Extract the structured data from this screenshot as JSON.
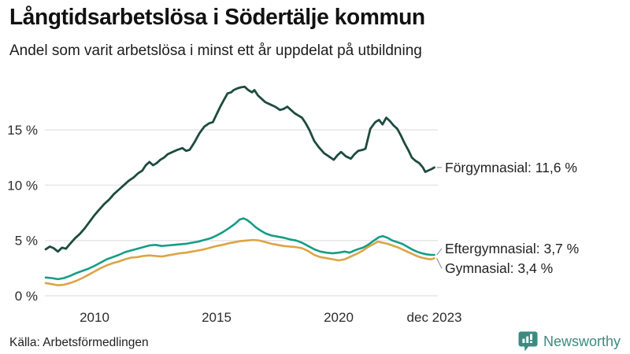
{
  "header": {
    "title": "Långtidsarbetslösa i Södertälje kommun",
    "subtitle": "Andel som varit arbetslösa i minst ett år uppdelat på utbildning"
  },
  "footer": {
    "source": "Källa: Arbetsförmedlingen",
    "brand": "Newsworthy"
  },
  "colors": {
    "forgymnasial": "#1d4b3f",
    "eftergymnasial": "#169c86",
    "gymnasial": "#dca444",
    "gridline": "#e7e7ea",
    "connector": "#999999",
    "brand_teal": "#3d8b80"
  },
  "chart_data": {
    "type": "line",
    "title": "Långtidsarbetslösa i Södertälje kommun",
    "subtitle": "Andel som varit arbetslösa i minst ett år uppdelat på utbildning",
    "grid": "horizontal",
    "legend_position": "end-of-line",
    "x_axis": {
      "range": [
        2008.0,
        2023.92
      ],
      "ticks": [
        {
          "label": "2010",
          "year": 2010
        },
        {
          "label": "2015",
          "year": 2015
        },
        {
          "label": "2020",
          "year": 2020
        },
        {
          "label": "dec 2023",
          "year": 2023.92
        }
      ]
    },
    "y_axis": {
      "range": [
        0,
        20
      ],
      "unit": "%",
      "ticks": [
        {
          "label": "0 %",
          "value": 0
        },
        {
          "label": "5 %",
          "value": 5
        },
        {
          "label": "10 %",
          "value": 10
        },
        {
          "label": "15 %",
          "value": 15
        }
      ]
    },
    "series": [
      {
        "name": "Förgymnasial",
        "color": "#1d4b3f",
        "last_value": 11.6,
        "end_label": "Förgymnasial: 11,6 %",
        "points": [
          [
            2008.0,
            4.2
          ],
          [
            2008.17,
            4.45
          ],
          [
            2008.33,
            4.3
          ],
          [
            2008.5,
            4.0
          ],
          [
            2008.67,
            4.35
          ],
          [
            2008.83,
            4.25
          ],
          [
            2009.0,
            4.7
          ],
          [
            2009.2,
            5.2
          ],
          [
            2009.4,
            5.6
          ],
          [
            2009.6,
            6.1
          ],
          [
            2009.8,
            6.7
          ],
          [
            2010.0,
            7.3
          ],
          [
            2010.2,
            7.8
          ],
          [
            2010.4,
            8.3
          ],
          [
            2010.6,
            8.7
          ],
          [
            2010.8,
            9.2
          ],
          [
            2011.0,
            9.6
          ],
          [
            2011.2,
            10.0
          ],
          [
            2011.4,
            10.4
          ],
          [
            2011.6,
            10.7
          ],
          [
            2011.8,
            11.1
          ],
          [
            2011.95,
            11.3
          ],
          [
            2012.1,
            11.8
          ],
          [
            2012.25,
            12.1
          ],
          [
            2012.4,
            11.8
          ],
          [
            2012.55,
            12.0
          ],
          [
            2012.7,
            12.3
          ],
          [
            2012.85,
            12.5
          ],
          [
            2013.0,
            12.8
          ],
          [
            2013.2,
            13.0
          ],
          [
            2013.4,
            13.2
          ],
          [
            2013.6,
            13.35
          ],
          [
            2013.75,
            13.1
          ],
          [
            2013.9,
            13.2
          ],
          [
            2014.1,
            13.9
          ],
          [
            2014.3,
            14.7
          ],
          [
            2014.5,
            15.3
          ],
          [
            2014.7,
            15.6
          ],
          [
            2014.85,
            15.7
          ],
          [
            2015.0,
            16.4
          ],
          [
            2015.15,
            17.1
          ],
          [
            2015.3,
            17.7
          ],
          [
            2015.45,
            18.3
          ],
          [
            2015.6,
            18.4
          ],
          [
            2015.7,
            18.6
          ],
          [
            2015.85,
            18.75
          ],
          [
            2016.0,
            18.85
          ],
          [
            2016.15,
            18.9
          ],
          [
            2016.3,
            18.6
          ],
          [
            2016.45,
            18.4
          ],
          [
            2016.55,
            18.6
          ],
          [
            2016.7,
            18.1
          ],
          [
            2016.85,
            17.8
          ],
          [
            2017.0,
            17.5
          ],
          [
            2017.2,
            17.3
          ],
          [
            2017.4,
            17.1
          ],
          [
            2017.6,
            16.8
          ],
          [
            2017.75,
            16.9
          ],
          [
            2017.9,
            17.1
          ],
          [
            2018.05,
            16.8
          ],
          [
            2018.2,
            16.5
          ],
          [
            2018.35,
            16.3
          ],
          [
            2018.5,
            16.1
          ],
          [
            2018.65,
            15.6
          ],
          [
            2018.8,
            15.0
          ],
          [
            2019.0,
            14.0
          ],
          [
            2019.2,
            13.4
          ],
          [
            2019.4,
            12.9
          ],
          [
            2019.6,
            12.6
          ],
          [
            2019.8,
            12.3
          ],
          [
            2019.95,
            12.7
          ],
          [
            2020.1,
            13.0
          ],
          [
            2020.3,
            12.6
          ],
          [
            2020.5,
            12.4
          ],
          [
            2020.65,
            12.8
          ],
          [
            2020.8,
            13.1
          ],
          [
            2021.0,
            13.2
          ],
          [
            2021.1,
            13.3
          ],
          [
            2021.3,
            15.1
          ],
          [
            2021.5,
            15.7
          ],
          [
            2021.65,
            15.9
          ],
          [
            2021.8,
            15.5
          ],
          [
            2021.95,
            16.1
          ],
          [
            2022.1,
            15.8
          ],
          [
            2022.25,
            15.4
          ],
          [
            2022.4,
            15.1
          ],
          [
            2022.55,
            14.5
          ],
          [
            2022.7,
            13.8
          ],
          [
            2022.85,
            13.2
          ],
          [
            2023.0,
            12.5
          ],
          [
            2023.15,
            12.2
          ],
          [
            2023.3,
            12.0
          ],
          [
            2023.45,
            11.6
          ],
          [
            2023.55,
            11.2
          ],
          [
            2023.7,
            11.35
          ],
          [
            2023.8,
            11.45
          ],
          [
            2023.92,
            11.6
          ]
        ]
      },
      {
        "name": "Eftergymnasial",
        "color": "#169c86",
        "last_value": 3.7,
        "end_label": "Eftergymnasial:  3,7 %",
        "points": [
          [
            2008.0,
            1.65
          ],
          [
            2008.25,
            1.6
          ],
          [
            2008.5,
            1.5
          ],
          [
            2008.75,
            1.6
          ],
          [
            2009.0,
            1.8
          ],
          [
            2009.25,
            2.05
          ],
          [
            2009.5,
            2.25
          ],
          [
            2009.75,
            2.45
          ],
          [
            2010.0,
            2.7
          ],
          [
            2010.25,
            3.0
          ],
          [
            2010.5,
            3.3
          ],
          [
            2010.75,
            3.5
          ],
          [
            2011.0,
            3.7
          ],
          [
            2011.25,
            3.95
          ],
          [
            2011.5,
            4.1
          ],
          [
            2011.75,
            4.25
          ],
          [
            2012.0,
            4.4
          ],
          [
            2012.25,
            4.55
          ],
          [
            2012.5,
            4.6
          ],
          [
            2012.75,
            4.5
          ],
          [
            2013.0,
            4.55
          ],
          [
            2013.25,
            4.6
          ],
          [
            2013.5,
            4.65
          ],
          [
            2013.75,
            4.7
          ],
          [
            2014.0,
            4.8
          ],
          [
            2014.25,
            4.9
          ],
          [
            2014.5,
            5.05
          ],
          [
            2014.75,
            5.2
          ],
          [
            2015.0,
            5.45
          ],
          [
            2015.25,
            5.75
          ],
          [
            2015.5,
            6.1
          ],
          [
            2015.75,
            6.5
          ],
          [
            2015.95,
            6.9
          ],
          [
            2016.1,
            7.0
          ],
          [
            2016.25,
            6.85
          ],
          [
            2016.4,
            6.6
          ],
          [
            2016.6,
            6.2
          ],
          [
            2016.8,
            5.9
          ],
          [
            2017.0,
            5.65
          ],
          [
            2017.25,
            5.45
          ],
          [
            2017.5,
            5.35
          ],
          [
            2017.75,
            5.25
          ],
          [
            2018.0,
            5.1
          ],
          [
            2018.25,
            5.0
          ],
          [
            2018.5,
            4.8
          ],
          [
            2018.75,
            4.5
          ],
          [
            2019.0,
            4.2
          ],
          [
            2019.25,
            4.0
          ],
          [
            2019.5,
            3.9
          ],
          [
            2019.75,
            3.85
          ],
          [
            2020.0,
            3.9
          ],
          [
            2020.25,
            4.0
          ],
          [
            2020.45,
            3.9
          ],
          [
            2020.65,
            4.1
          ],
          [
            2020.85,
            4.25
          ],
          [
            2021.0,
            4.35
          ],
          [
            2021.2,
            4.6
          ],
          [
            2021.45,
            5.0
          ],
          [
            2021.65,
            5.3
          ],
          [
            2021.8,
            5.4
          ],
          [
            2022.0,
            5.25
          ],
          [
            2022.2,
            5.0
          ],
          [
            2022.4,
            4.85
          ],
          [
            2022.6,
            4.7
          ],
          [
            2022.8,
            4.45
          ],
          [
            2023.0,
            4.2
          ],
          [
            2023.2,
            4.0
          ],
          [
            2023.4,
            3.85
          ],
          [
            2023.6,
            3.75
          ],
          [
            2023.8,
            3.7
          ],
          [
            2023.92,
            3.7
          ]
        ]
      },
      {
        "name": "Gymnasial",
        "color": "#dca444",
        "last_value": 3.4,
        "end_label": "Gymnasial:  3,4 %",
        "points": [
          [
            2008.0,
            1.15
          ],
          [
            2008.25,
            1.05
          ],
          [
            2008.5,
            0.95
          ],
          [
            2008.75,
            1.0
          ],
          [
            2009.0,
            1.15
          ],
          [
            2009.25,
            1.35
          ],
          [
            2009.5,
            1.6
          ],
          [
            2009.75,
            1.9
          ],
          [
            2010.0,
            2.2
          ],
          [
            2010.25,
            2.5
          ],
          [
            2010.5,
            2.75
          ],
          [
            2010.75,
            2.95
          ],
          [
            2011.0,
            3.1
          ],
          [
            2011.25,
            3.3
          ],
          [
            2011.5,
            3.45
          ],
          [
            2011.75,
            3.5
          ],
          [
            2012.0,
            3.6
          ],
          [
            2012.25,
            3.65
          ],
          [
            2012.5,
            3.6
          ],
          [
            2012.75,
            3.55
          ],
          [
            2013.0,
            3.65
          ],
          [
            2013.25,
            3.75
          ],
          [
            2013.5,
            3.85
          ],
          [
            2013.75,
            3.9
          ],
          [
            2014.0,
            4.0
          ],
          [
            2014.25,
            4.1
          ],
          [
            2014.5,
            4.2
          ],
          [
            2014.75,
            4.35
          ],
          [
            2015.0,
            4.5
          ],
          [
            2015.25,
            4.6
          ],
          [
            2015.5,
            4.75
          ],
          [
            2015.75,
            4.85
          ],
          [
            2016.0,
            4.95
          ],
          [
            2016.25,
            5.0
          ],
          [
            2016.5,
            5.05
          ],
          [
            2016.75,
            5.0
          ],
          [
            2017.0,
            4.85
          ],
          [
            2017.25,
            4.7
          ],
          [
            2017.5,
            4.6
          ],
          [
            2017.75,
            4.5
          ],
          [
            2018.0,
            4.45
          ],
          [
            2018.25,
            4.4
          ],
          [
            2018.5,
            4.3
          ],
          [
            2018.75,
            4.05
          ],
          [
            2019.0,
            3.7
          ],
          [
            2019.25,
            3.5
          ],
          [
            2019.5,
            3.4
          ],
          [
            2019.75,
            3.3
          ],
          [
            2020.0,
            3.2
          ],
          [
            2020.25,
            3.3
          ],
          [
            2020.5,
            3.55
          ],
          [
            2020.75,
            3.8
          ],
          [
            2021.0,
            4.1
          ],
          [
            2021.2,
            4.4
          ],
          [
            2021.45,
            4.7
          ],
          [
            2021.6,
            4.9
          ],
          [
            2021.8,
            4.8
          ],
          [
            2022.0,
            4.7
          ],
          [
            2022.2,
            4.55
          ],
          [
            2022.4,
            4.4
          ],
          [
            2022.6,
            4.2
          ],
          [
            2022.8,
            4.0
          ],
          [
            2023.0,
            3.8
          ],
          [
            2023.2,
            3.6
          ],
          [
            2023.4,
            3.45
          ],
          [
            2023.6,
            3.35
          ],
          [
            2023.8,
            3.3
          ],
          [
            2023.92,
            3.4
          ]
        ]
      }
    ]
  }
}
